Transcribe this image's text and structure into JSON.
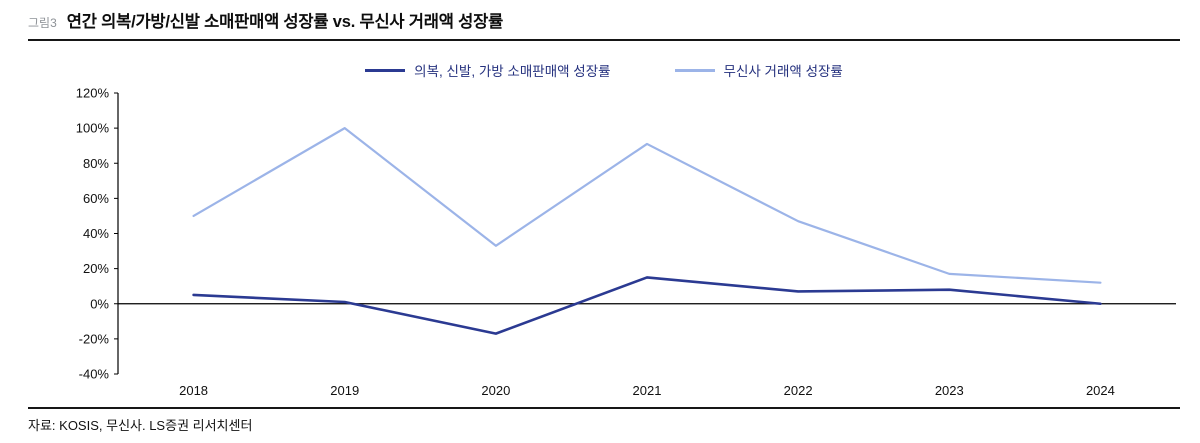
{
  "figure": {
    "tag": "그림3",
    "title": "연간 의복/가방/신발 소매판매액 성장률 vs. 무신사 거래액 성장률",
    "source": "자료: KOSIS, 무신사. LS증권 리서치센터"
  },
  "chart_data": {
    "type": "line",
    "title": "연간 의복/가방/신발 소매판매액 성장률 vs. 무신사 거래액 성장률",
    "categories": [
      "2018",
      "2019",
      "2020",
      "2021",
      "2022",
      "2023",
      "2024"
    ],
    "series": [
      {
        "name": "의복, 신발, 가방 소매판매액 성장률",
        "color": "#2b3a92",
        "stroke_width": 2.6,
        "values": [
          5,
          1,
          -17,
          15,
          7,
          8,
          0
        ]
      },
      {
        "name": "무신사 거래액 성장률",
        "color": "#9cb4e8",
        "stroke_width": 2.2,
        "values": [
          50,
          100,
          33,
          91,
          47,
          17,
          12
        ]
      }
    ],
    "ylim": [
      -40,
      120
    ],
    "ytick_step": 20,
    "ytick_suffix": "%",
    "grid": false,
    "legend_position": "top",
    "axis_color": "#000000"
  }
}
